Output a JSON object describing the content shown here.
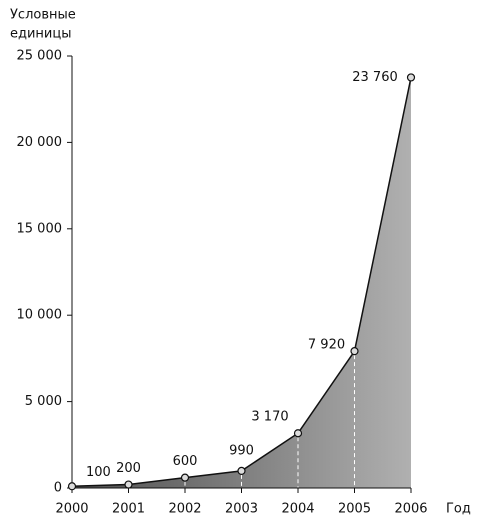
{
  "chart_data": {
    "type": "area",
    "ylabel": [
      "Условные",
      "единицы"
    ],
    "xlabel": "Год",
    "categories": [
      "2000",
      "2001",
      "2002",
      "2003",
      "2004",
      "2005",
      "2006"
    ],
    "values": [
      100,
      200,
      600,
      990,
      3170,
      7920,
      23760
    ],
    "value_labels": [
      "100",
      "200",
      "600",
      "990",
      "3 170",
      "7 920",
      "23 760"
    ],
    "ylim": [
      0,
      25000
    ],
    "yticks": [
      0,
      {
        "value": 5000,
        "label": "5 000"
      },
      {
        "value": 10000,
        "label": "10 000"
      },
      {
        "value": 15000,
        "label": "15 000"
      },
      {
        "value": 20000,
        "label": "20 000"
      },
      {
        "value": 25000,
        "label": "25 000"
      }
    ],
    "color": "#111111",
    "fill_colors": [
      "#4e4e4e",
      "#b0b0b0"
    ]
  }
}
